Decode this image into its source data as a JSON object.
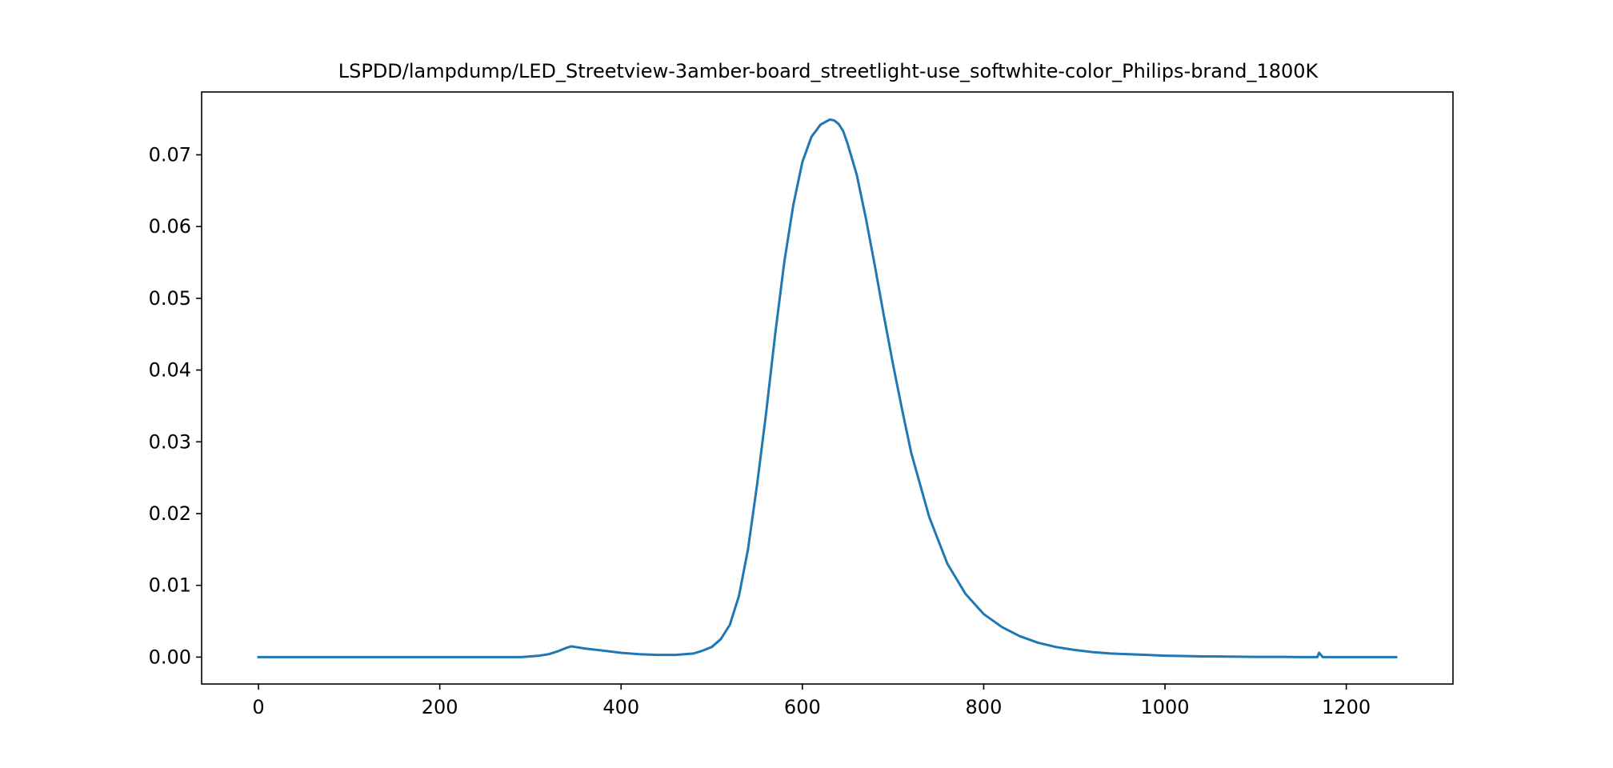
{
  "chart_data": {
    "type": "line",
    "title": "LSPDD/lampdump/LED_Streetview-3amber-board_streetlight-use_softwhite-color_Philips-brand_1800K",
    "xlabel": "",
    "ylabel": "",
    "xlim": [
      -62.7,
      1317.7
    ],
    "ylim": [
      -0.00375,
      0.07875
    ],
    "xticks": [
      0,
      200,
      400,
      600,
      800,
      1000,
      1200
    ],
    "xtick_labels": [
      "0",
      "200",
      "400",
      "600",
      "800",
      "1000",
      "1200"
    ],
    "yticks": [
      0.0,
      0.01,
      0.02,
      0.03,
      0.04,
      0.05,
      0.06,
      0.07
    ],
    "ytick_labels": [
      "0.00",
      "0.01",
      "0.02",
      "0.03",
      "0.04",
      "0.05",
      "0.06",
      "0.07"
    ],
    "grid": false,
    "series": [
      {
        "color": "#1f77b4",
        "x": [
          0,
          100,
          200,
          290,
          310,
          320,
          330,
          340,
          345,
          350,
          360,
          380,
          400,
          420,
          440,
          460,
          480,
          490,
          500,
          510,
          520,
          530,
          540,
          550,
          560,
          570,
          580,
          590,
          600,
          610,
          620,
          630,
          635,
          640,
          645,
          650,
          660,
          670,
          680,
          690,
          700,
          710,
          720,
          740,
          760,
          780,
          800,
          820,
          840,
          860,
          880,
          900,
          920,
          940,
          960,
          980,
          1000,
          1020,
          1040,
          1060,
          1080,
          1100,
          1130,
          1150,
          1168,
          1170,
          1172,
          1174,
          1180,
          1200,
          1255
        ],
        "y": [
          0.0,
          0.0,
          0.0,
          0.0,
          0.0002,
          0.0004,
          0.0008,
          0.0013,
          0.0015,
          0.0014,
          0.0012,
          0.0009,
          0.0006,
          0.0004,
          0.0003,
          0.0003,
          0.0005,
          0.0009,
          0.0014,
          0.0025,
          0.0045,
          0.0085,
          0.015,
          0.024,
          0.034,
          0.045,
          0.055,
          0.063,
          0.069,
          0.0725,
          0.0742,
          0.0749,
          0.0748,
          0.0743,
          0.0733,
          0.0715,
          0.0672,
          0.0612,
          0.0545,
          0.0475,
          0.0408,
          0.0345,
          0.0285,
          0.0195,
          0.013,
          0.0088,
          0.006,
          0.0042,
          0.0029,
          0.002,
          0.0014,
          0.001,
          0.0007,
          0.0005,
          0.0004,
          0.0003,
          0.0002,
          0.00015,
          0.0001,
          8e-05,
          5e-05,
          3e-05,
          2e-05,
          0.0,
          0.0,
          0.0006,
          0.0003,
          0.0,
          0.0,
          0.0,
          0.0
        ]
      }
    ]
  }
}
